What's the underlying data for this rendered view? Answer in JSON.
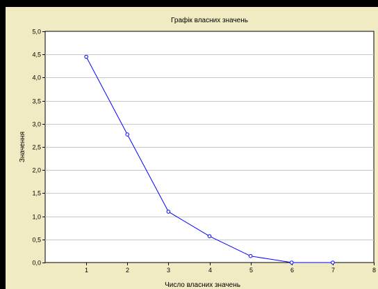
{
  "colors": {
    "page_background": "#f0ebc2",
    "plot_background": "#ffffff",
    "grid": "#c8c8c8",
    "series": "#0000ff",
    "outer_border": "#000000"
  },
  "chart_data": {
    "type": "line",
    "title": "Графік власних значень",
    "xlabel": "Число власних значень",
    "ylabel": "Значення",
    "xlim": [
      0,
      8
    ],
    "ylim": [
      0,
      5
    ],
    "x_ticks": [
      1,
      2,
      3,
      4,
      5,
      6,
      7,
      8
    ],
    "x_tick_labels": [
      "1",
      "2",
      "3",
      "4",
      "5",
      "6",
      "7",
      "8"
    ],
    "y_ticks": [
      0,
      0.5,
      1,
      1.5,
      2,
      2.5,
      3,
      3.5,
      4,
      4.5,
      5
    ],
    "y_tick_labels": [
      "0,0",
      "0,5",
      "1,0",
      "1,5",
      "2,0",
      "2,5",
      "3,0",
      "3,5",
      "4,0",
      "4,5",
      "5,0"
    ],
    "grid": "horizontal",
    "marker": "circle",
    "series": [
      {
        "x": [
          1,
          2,
          3,
          4,
          5,
          6,
          7
        ],
        "values": [
          4.45,
          2.77,
          1.1,
          0.57,
          0.14,
          0.0,
          0.0
        ]
      }
    ]
  }
}
